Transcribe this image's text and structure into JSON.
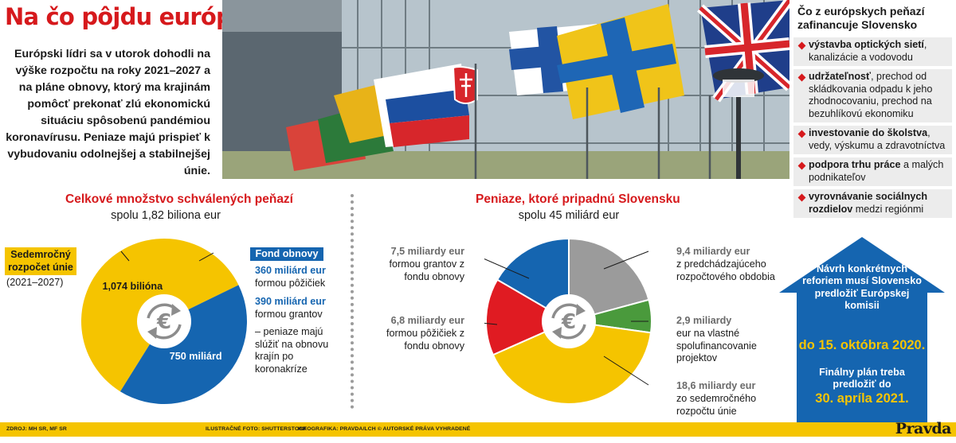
{
  "header": {
    "title": "Na čo pôjdu európske peniaze?",
    "intro": "Európski lídri sa v utorok dohodli na výške rozpočtu na roky 2021–2027 a na pláne obnovy, ktorý ma krajinám pomôcť prekonať zlú ekonomickú situáciu spôsobenú pandémiou koronavírusu. Peniaze majú prispieť k vybudovaniu odolnejšej a stabilnejšej únie."
  },
  "sidebar": {
    "title": "Čo z európskych peňazí zafinancuje Slovensko",
    "items": [
      {
        "bold": "výstavba optických sietí",
        "rest": ", kanalizácie a vodovodu"
      },
      {
        "bold": "udržateľnosť",
        "rest": ", prechod od skládkovania odpadu k jeho zhodnocovaniu, prechod na bezuhlíkovú ekonomiku"
      },
      {
        "bold": "investovanie do školstva",
        "rest": ", vedy, výskumu a zdravotníctva"
      },
      {
        "bold": "podpora trhu práce",
        "rest": " a malých podnikateľov"
      },
      {
        "bold": "vyrovnávanie sociálnych rozdielov",
        "rest": " medzi regiónmi"
      }
    ]
  },
  "deadlines": {
    "text1": "Návrh konkrétnych reforiem musí Slovensko predložiť Európskej komisii",
    "date1": "do 15. októbra 2020.",
    "text2": "Finálny plán treba predložiť do",
    "date2": "30. apríla 2021."
  },
  "left_labels": {
    "tag_budget": "Sedemročný rozpočet únie",
    "budget_years": "(2021–2027)",
    "tag_fund": "Fond obnovy",
    "loans_amount": "360 miliárd eur",
    "loans_text": "formou pôžičiek",
    "grants_amount": "390 miliárd eur",
    "grants_text": "formou grantov",
    "note": "– peniaze majú slúžiť na obnovu krajín po koronakríze"
  },
  "right_labels": {
    "grants_amount": "7,5 miliardy eur",
    "grants_text": "formou grantov z fondu obnovy",
    "loans_amount": "6,8 miliardy eur",
    "loans_text": "formou pôžičiek z fondu obnovy",
    "prev_amount": "9,4 miliardy eur",
    "prev_text": "z predchádzajúceho rozpočtového obdobia",
    "own_amount": "2,9 miliardy",
    "own_text": "eur na vlastné spolufinancovanie projektov",
    "budget_amount": "18,6 miliardy eur",
    "budget_text": "zo sedemročného rozpočtu únie"
  },
  "footer": {
    "source": "ZDROJ: MH SR, MF SR",
    "photo": "ILUSTRAČNÉ FOTO: SHUTTERSTOCK",
    "credit": "INFOGRAFIKA: PRAVDA/LCH © AUTORSKÉ PRÁVA VYHRADENÉ",
    "brand": "Pravda"
  },
  "colors": {
    "accent_red": "#d6191c",
    "eu_blue": "#1565b0",
    "yellow": "#f5c400",
    "gray": "#9b9b9b",
    "green": "#4a9a3c",
    "red_slice": "#e01b22"
  },
  "icons": [
    "euro-exchange-icon",
    "diamond-bullet-icon",
    "up-arrow-shape"
  ],
  "chart_data": [
    {
      "type": "pie",
      "title": "Celkové množstvo schválených peňazí",
      "subtitle": "spolu 1,82 biliona eur",
      "slices": [
        {
          "label": "1,074 bilióna",
          "value": 1074,
          "color": "#f5c400"
        },
        {
          "label": "750 miliárd",
          "value": 750,
          "color": "#1565b0"
        }
      ]
    },
    {
      "type": "pie",
      "title": "Peniaze, ktoré pripadnú Slovensku",
      "subtitle": "spolu 45 miliárd eur",
      "slices": [
        {
          "label": "9,4 miliardy eur",
          "value": 9.4,
          "color": "#9b9b9b"
        },
        {
          "label": "2,9 miliardy",
          "value": 2.9,
          "color": "#4a9a3c"
        },
        {
          "label": "18,6 miliardy eur",
          "value": 18.6,
          "color": "#f5c400"
        },
        {
          "label": "6,8 miliardy eur",
          "value": 6.8,
          "color": "#e01b22"
        },
        {
          "label": "7,5 miliardy eur",
          "value": 7.5,
          "color": "#1565b0"
        }
      ]
    }
  ]
}
